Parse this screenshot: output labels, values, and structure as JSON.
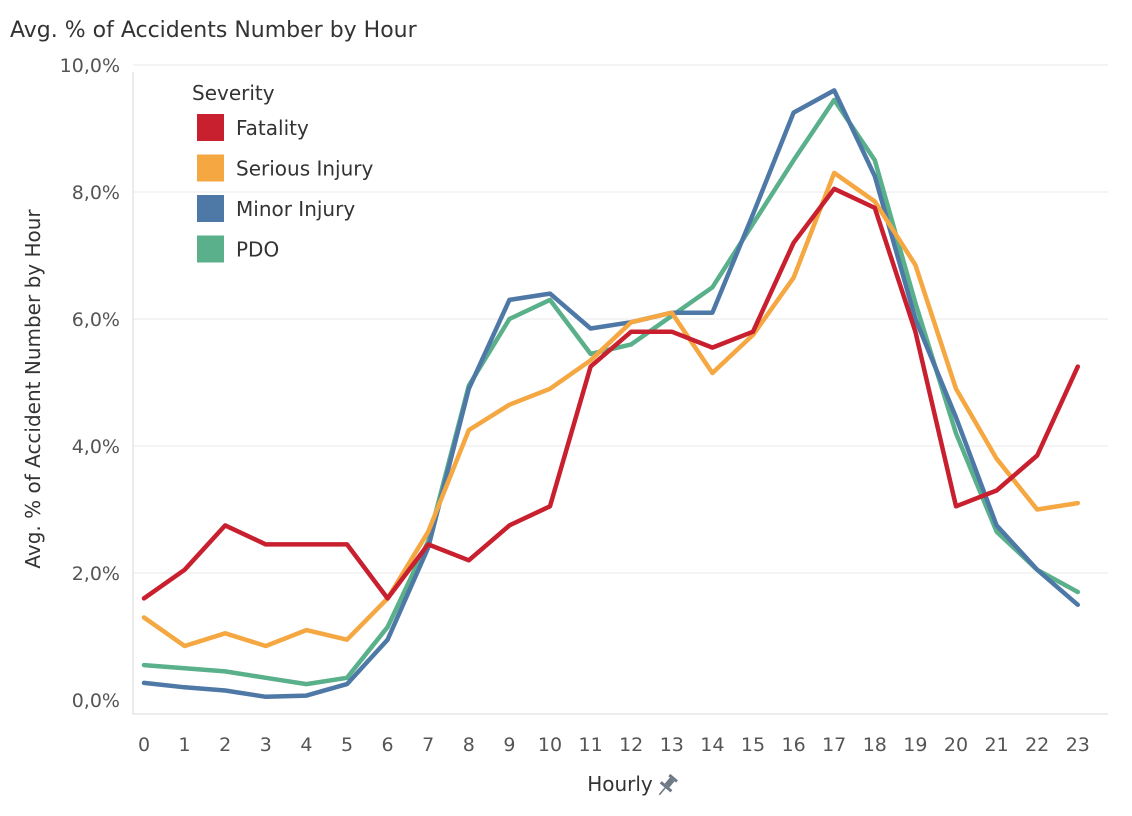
{
  "chart_data": {
    "type": "line",
    "title": "Avg. % of Accidents Number by Hour",
    "xlabel": "Hourly",
    "ylabel": "Avg. % of Accident Number by Hour",
    "x": [
      0,
      1,
      2,
      3,
      4,
      5,
      6,
      7,
      8,
      9,
      10,
      11,
      12,
      13,
      14,
      15,
      16,
      17,
      18,
      19,
      20,
      21,
      22,
      23
    ],
    "ylim": [
      0,
      10
    ],
    "yticks": [
      0,
      2,
      4,
      6,
      8,
      10
    ],
    "ytick_labels": [
      "0,0%",
      "2,0%",
      "4,0%",
      "6,0%",
      "8,0%",
      "10,0%"
    ],
    "grid": true,
    "legend": {
      "title": "Severity",
      "position": "top-left"
    },
    "pin_icon": "pin-icon",
    "series": [
      {
        "name": "Fatality",
        "color": "#c8202f",
        "values": [
          1.6,
          2.05,
          2.75,
          2.45,
          2.45,
          2.45,
          1.6,
          2.45,
          2.2,
          2.75,
          3.05,
          5.25,
          5.8,
          5.8,
          5.55,
          5.8,
          7.2,
          8.05,
          7.75,
          5.8,
          3.05,
          3.3,
          3.85,
          5.25
        ]
      },
      {
        "name": "Serious Injury",
        "color": "#f5a742",
        "values": [
          1.3,
          0.85,
          1.05,
          0.85,
          1.1,
          0.95,
          1.6,
          2.65,
          4.25,
          4.65,
          4.9,
          5.35,
          5.95,
          6.1,
          5.15,
          5.75,
          6.65,
          8.3,
          7.85,
          6.85,
          4.9,
          3.8,
          3.0,
          3.1
        ]
      },
      {
        "name": "Minor Injury",
        "color": "#4e79a7",
        "values": [
          0.27,
          0.2,
          0.15,
          0.05,
          0.07,
          0.25,
          0.95,
          2.4,
          4.9,
          6.3,
          6.4,
          5.85,
          5.95,
          6.1,
          6.1,
          7.65,
          9.25,
          9.6,
          8.25,
          6.0,
          4.45,
          2.75,
          2.05,
          1.5
        ]
      },
      {
        "name": "PDO",
        "color": "#59b08a",
        "values": [
          0.55,
          0.5,
          0.45,
          0.35,
          0.25,
          0.35,
          1.15,
          2.5,
          4.95,
          6.0,
          6.3,
          5.45,
          5.6,
          6.05,
          6.5,
          7.5,
          8.5,
          9.45,
          8.5,
          6.25,
          4.2,
          2.65,
          2.05,
          1.7
        ]
      }
    ]
  }
}
